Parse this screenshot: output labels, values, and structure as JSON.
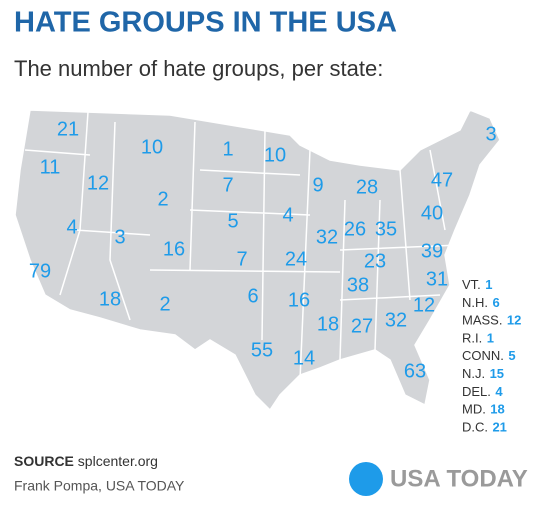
{
  "header": {
    "title": "HATE GROUPS IN THE USA",
    "subtitle": "The number of hate groups, per state:"
  },
  "map": {
    "counts": [
      21,
      11,
      12,
      10,
      1,
      10,
      7,
      2,
      9,
      28,
      3,
      47,
      4,
      3,
      16,
      5,
      4,
      32,
      26,
      35,
      40,
      79,
      7,
      24,
      23,
      39,
      31,
      18,
      2,
      6,
      16,
      38,
      12,
      18,
      27,
      32,
      55,
      14,
      63
    ]
  },
  "inset": [
    {
      "label": "VT.",
      "count": 1
    },
    {
      "label": "N.H.",
      "count": 6
    },
    {
      "label": "MASS.",
      "count": 12
    },
    {
      "label": "R.I.",
      "count": 1
    },
    {
      "label": "CONN.",
      "count": 5
    },
    {
      "label": "N.J.",
      "count": 15
    },
    {
      "label": "DEL.",
      "count": 4
    },
    {
      "label": "MD.",
      "count": 18
    },
    {
      "label": "D.C.",
      "count": 21
    }
  ],
  "footer": {
    "source_label": "SOURCE",
    "source": "splcenter.org",
    "credit": "Frank Pompa, USA TODAY",
    "logo": "USA TODAY"
  }
}
